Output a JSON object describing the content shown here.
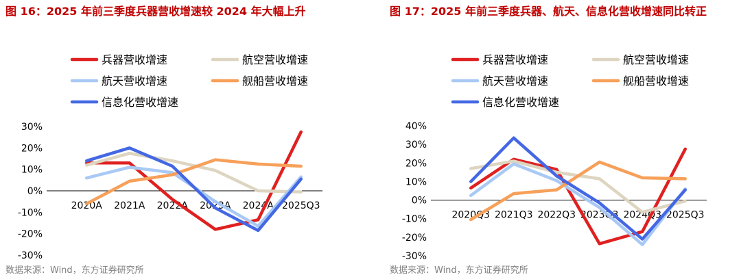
{
  "left": {
    "title": "图 16：2025 年前三季度兵器营收增速较 2024 年大幅上升",
    "source": "数据来源：Wind，东方证券研究所"
  },
  "right": {
    "title": "图 17：2025 年前三季度兵器、航天、信息化营收增速同比转正",
    "source": "数据来源：Wind，东方证券研究所"
  },
  "chart_data": [
    {
      "type": "line",
      "title": "图 16：2025 年前三季度兵器营收增速较 2024 年大幅上升",
      "categories": [
        "2020A",
        "2021A",
        "2022A",
        "2023A",
        "2024A",
        "2025Q3"
      ],
      "ylim": [
        -0.3,
        0.3
      ],
      "yticks": [
        0.3,
        0.2,
        0.1,
        0,
        -0.1,
        -0.2,
        -0.3
      ],
      "ytick_labels": [
        "30%",
        "20%",
        "10%",
        "0%",
        "-10%",
        "-20%",
        "-30%"
      ],
      "legend_position": "top-left",
      "series": [
        {
          "name": "兵器营收增速",
          "color": "#e02020",
          "values": [
            0.13,
            0.13,
            -0.04,
            -0.18,
            -0.135,
            0.275
          ]
        },
        {
          "name": "航空营收增速",
          "color": "#ddd5c0",
          "values": [
            0.12,
            0.175,
            0.14,
            0.095,
            0.0,
            -0.005
          ]
        },
        {
          "name": "航天营收增速",
          "color": "#a9c9f5",
          "values": [
            0.06,
            0.11,
            0.085,
            -0.05,
            -0.165,
            0.065
          ]
        },
        {
          "name": "舰船营收增速",
          "color": "#f6a05a",
          "values": [
            -0.06,
            0.045,
            0.075,
            0.145,
            0.125,
            0.115
          ]
        },
        {
          "name": "信息化营收增速",
          "color": "#4468e4",
          "values": [
            0.14,
            0.2,
            0.115,
            -0.08,
            -0.185,
            0.055
          ]
        }
      ]
    },
    {
      "type": "line",
      "title": "图 17：2025 年前三季度兵器、航天、信息化营收增速同比转正",
      "categories": [
        "2020Q3",
        "2021Q3",
        "2022Q3",
        "2023Q3",
        "2024Q3",
        "2025Q3"
      ],
      "ylim": [
        -0.3,
        0.4
      ],
      "yticks": [
        0.4,
        0.3,
        0.2,
        0.1,
        0,
        -0.1,
        -0.2,
        -0.3
      ],
      "ytick_labels": [
        "40%",
        "30%",
        "20%",
        "10%",
        "0%",
        "-10%",
        "-20%",
        "-30%"
      ],
      "legend_position": "top-left",
      "series": [
        {
          "name": "兵器营收增速",
          "color": "#e02020",
          "values": [
            0.065,
            0.22,
            0.165,
            -0.235,
            -0.17,
            0.275
          ]
        },
        {
          "name": "航空营收增速",
          "color": "#ddd5c0",
          "values": [
            0.17,
            0.21,
            0.15,
            0.115,
            -0.065,
            -0.005
          ]
        },
        {
          "name": "航天营收增速",
          "color": "#a9c9f5",
          "values": [
            0.025,
            0.195,
            0.105,
            -0.04,
            -0.24,
            0.06
          ]
        },
        {
          "name": "舰船营收增速",
          "color": "#f6a05a",
          "values": [
            -0.105,
            0.035,
            0.055,
            0.205,
            0.12,
            0.115
          ]
        },
        {
          "name": "信息化营收增速",
          "color": "#4468e4",
          "values": [
            0.1,
            0.335,
            0.13,
            -0.015,
            -0.21,
            0.055
          ]
        }
      ]
    }
  ]
}
